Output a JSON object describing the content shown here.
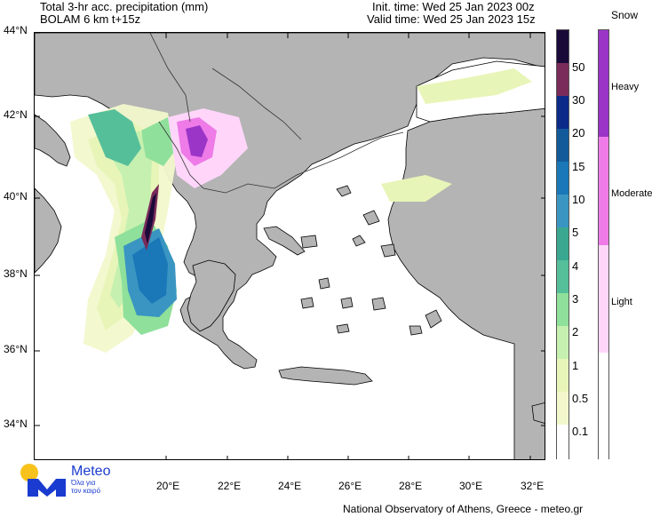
{
  "header": {
    "title": "Total 3-hr acc. precipitation (mm)",
    "model": "BOLAM 6 km t+15z",
    "init_time": "Init. time: Wed 25 Jan 2023 00z",
    "valid_time": "Valid time: Wed 25 Jan 2023 15z"
  },
  "map": {
    "lat_labels": [
      "44°N",
      "42°N",
      "40°N",
      "38°N",
      "36°N",
      "34°N"
    ],
    "lon_labels": [
      "20°E",
      "22°E",
      "24°E",
      "26°E",
      "28°E",
      "30°E",
      "32°E"
    ],
    "land_color": "#b4b4b4",
    "sea_color": "#ffffff"
  },
  "precip_scale": {
    "title": "",
    "levels": [
      "50",
      "30",
      "20",
      "15",
      "10",
      "5",
      "4",
      "3",
      "2",
      "1",
      "0.5",
      "0.1"
    ],
    "colors": [
      "#1a0a3a",
      "#7a2b5a",
      "#0c2a8a",
      "#125a9a",
      "#1a78b8",
      "#3a95c2",
      "#3aa890",
      "#55bf9a",
      "#8fe09a",
      "#c5f0b0",
      "#e8f5b8",
      "#f2f8cc",
      "#ffffff"
    ]
  },
  "snow_scale": {
    "title": "Snow",
    "levels": [
      "Heavy",
      "Moderate",
      "Light"
    ],
    "colors": [
      "#9b35c8",
      "#ee7be8",
      "#ffd6fa",
      "#ffffff"
    ]
  },
  "logo": {
    "brand": "Meteo",
    "tagline_line1": "Όλα για",
    "tagline_line2": "τον καιρό"
  },
  "footer": {
    "credit": "National Observatory of Athens, Greece - meteo.gr"
  }
}
